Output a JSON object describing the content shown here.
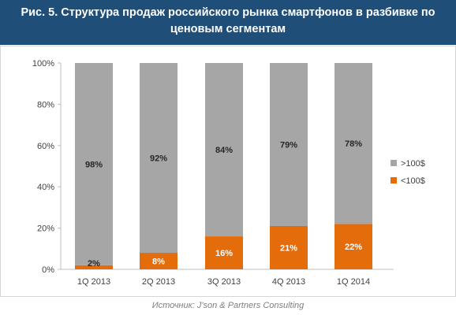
{
  "title": "Рис. 5. Структура продаж российского рынка смартфонов в разбивке по ценовым сегментам",
  "source": "Источник: J'son & Partners Consulting",
  "colors": {
    "title_bg": "#1f4e79",
    "gray": "#a6a6a6",
    "orange": "#e46c0a"
  },
  "chart_data": {
    "type": "bar",
    "stacked": true,
    "categories": [
      "1Q 2013",
      "2Q 2013",
      "3Q 2013",
      "4Q 2013",
      "1Q 2014"
    ],
    "series": [
      {
        "name": "<100$",
        "values": [
          2,
          8,
          16,
          21,
          22
        ],
        "labels": [
          "2%",
          "8%",
          "16%",
          "21%",
          "22%"
        ],
        "color": "#e46c0a"
      },
      {
        "name": ">100$",
        "values": [
          98,
          92,
          84,
          79,
          78
        ],
        "labels": [
          "98%",
          "92%",
          "84%",
          "79%",
          "78%"
        ],
        "color": "#a6a6a6"
      }
    ],
    "y_ticks": [
      "0%",
      "20%",
      "40%",
      "60%",
      "80%",
      "100%"
    ],
    "ylim": [
      0,
      100
    ],
    "legend": {
      "position": "right",
      "entries": [
        ">100$",
        "<100$"
      ]
    },
    "grid": false
  }
}
